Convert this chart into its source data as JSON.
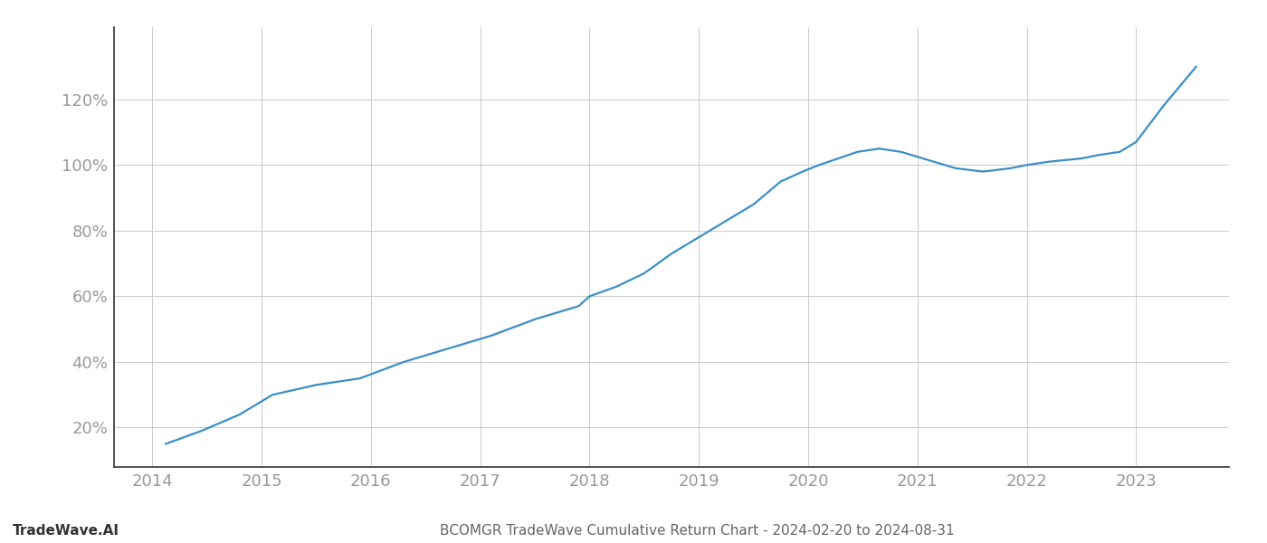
{
  "title": "BCOMGR TradeWave Cumulative Return Chart - 2024-02-20 to 2024-08-31",
  "watermark": "TradeWave.AI",
  "line_color": "#3a8fc7",
  "background_color": "#ffffff",
  "grid_color": "#cccccc",
  "x_years": [
    2014,
    2015,
    2016,
    2017,
    2018,
    2019,
    2020,
    2021,
    2022,
    2023
  ],
  "x_values": [
    2014.12,
    2014.45,
    2014.8,
    2015.1,
    2015.5,
    2015.9,
    2016.3,
    2016.7,
    2017.1,
    2017.5,
    2017.9,
    2018.0,
    2018.25,
    2018.5,
    2018.75,
    2019.0,
    2019.2,
    2019.5,
    2019.75,
    2019.95,
    2020.1,
    2020.45,
    2020.65,
    2020.85,
    2021.05,
    2021.35,
    2021.6,
    2021.85,
    2022.0,
    2022.2,
    2022.5,
    2022.65,
    2022.85,
    2023.0,
    2023.25,
    2023.55
  ],
  "y_values": [
    15,
    19,
    24,
    30,
    33,
    35,
    40,
    44,
    48,
    53,
    57,
    60,
    63,
    67,
    73,
    78,
    82,
    88,
    95,
    98,
    100,
    104,
    105,
    104,
    102,
    99,
    98,
    99,
    100,
    101,
    102,
    103,
    104,
    107,
    118,
    130
  ],
  "yticks": [
    20,
    40,
    60,
    80,
    100,
    120
  ],
  "ylim": [
    8,
    142
  ],
  "xlim": [
    2013.65,
    2023.85
  ],
  "tick_label_color": "#999999",
  "title_color": "#666666",
  "watermark_color": "#333333",
  "title_fontsize": 11,
  "watermark_fontsize": 11,
  "tick_fontsize": 13,
  "line_width": 1.6
}
